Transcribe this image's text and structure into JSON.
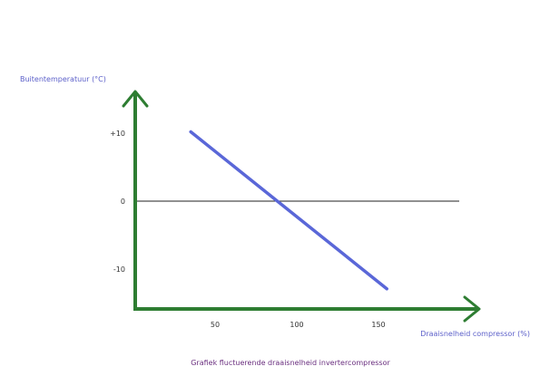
{
  "chart_data": {
    "type": "line",
    "ylabel": "Buitentemperatuur (°C)",
    "xlabel": "Draaisnelheid compressor (%)",
    "caption": "Grafiek fluctuerende draaisnelheid invertercompressor",
    "x_ticks": [
      50,
      100,
      150
    ],
    "y_ticks": [
      10,
      0,
      -10
    ],
    "y_tick_labels": [
      "+10",
      "0",
      "-10"
    ],
    "xlim": [
      0,
      200
    ],
    "ylim": [
      -16,
      16
    ],
    "series": [
      {
        "values": [
          [
            34,
            10.2
          ],
          [
            154,
            -12.9
          ]
        ]
      }
    ],
    "grid": false,
    "zero_line": true
  },
  "colors": {
    "axis": "#2e7d32",
    "series": "#5a67d8",
    "zero_line": "#222222",
    "label": "#5b5fc9",
    "caption": "#6a2f7f"
  }
}
